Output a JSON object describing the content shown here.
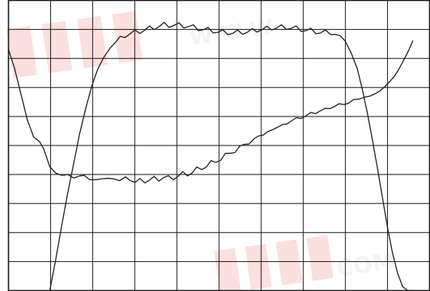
{
  "chart_data": {
    "type": "line",
    "grid": true,
    "xlim": [
      0,
      10
    ],
    "ylim": [
      0,
      10
    ],
    "xlabel": "",
    "ylabel": "",
    "series": [
      {
        "x": [
          0.0,
          0.14,
          0.31,
          0.45,
          0.6,
          0.74,
          0.84,
          0.98,
          1.12,
          1.27,
          1.41,
          1.55,
          1.69,
          1.8,
          1.93,
          2.07,
          2.22,
          2.36,
          2.5,
          2.64,
          2.78,
          2.89,
          3.01,
          3.12,
          3.24,
          3.35,
          3.46,
          3.57,
          3.69,
          3.8,
          3.91,
          4.02,
          4.14,
          4.25,
          4.36,
          4.47,
          4.59,
          4.7,
          4.81,
          4.92,
          5.04,
          5.15,
          5.26,
          5.38,
          5.49,
          5.6,
          5.71,
          5.83,
          5.94,
          6.05,
          6.16,
          6.28,
          6.39,
          6.5,
          6.61,
          6.73,
          6.84,
          6.95,
          7.07,
          7.18,
          7.29,
          7.4,
          7.52,
          7.63,
          7.74,
          7.85,
          7.97,
          8.08,
          8.19,
          8.33,
          8.46,
          8.58,
          8.7,
          8.82,
          8.93,
          9.04,
          9.15,
          9.25,
          9.34,
          9.43,
          9.51,
          9.6
        ],
        "y": [
          8.31,
          7.68,
          6.69,
          5.87,
          5.29,
          5.13,
          4.87,
          4.27,
          4.05,
          3.97,
          4.0,
          3.88,
          3.95,
          3.97,
          3.82,
          3.82,
          3.85,
          3.87,
          3.85,
          3.79,
          3.92,
          3.79,
          3.73,
          3.86,
          3.71,
          3.81,
          3.94,
          3.77,
          3.9,
          3.96,
          3.82,
          3.93,
          4.1,
          3.95,
          4.05,
          4.26,
          4.17,
          4.26,
          4.48,
          4.42,
          4.49,
          4.73,
          4.73,
          4.76,
          4.98,
          5.04,
          5.05,
          5.23,
          5.33,
          5.36,
          5.48,
          5.55,
          5.63,
          5.72,
          5.74,
          5.86,
          5.96,
          5.93,
          6.03,
          6.14,
          6.1,
          6.19,
          6.28,
          6.27,
          6.34,
          6.44,
          6.41,
          6.46,
          6.58,
          6.6,
          6.67,
          6.7,
          6.78,
          6.88,
          7.02,
          7.18,
          7.36,
          7.58,
          7.82,
          8.07,
          8.3,
          8.6
        ]
      },
      {
        "x": [
          0.98,
          1.12,
          1.27,
          1.41,
          1.55,
          1.69,
          1.84,
          1.98,
          2.12,
          2.26,
          2.41,
          2.55,
          2.65,
          2.77,
          2.88,
          3.0,
          3.12,
          3.23,
          3.35,
          3.46,
          3.58,
          3.7,
          3.81,
          3.93,
          4.05,
          4.16,
          4.28,
          4.39,
          4.51,
          4.63,
          4.74,
          4.86,
          4.97,
          5.09,
          5.21,
          5.32,
          5.44,
          5.56,
          5.67,
          5.79,
          5.9,
          6.02,
          6.14,
          6.25,
          6.37,
          6.48,
          6.6,
          6.72,
          6.83,
          6.95,
          7.07,
          7.18,
          7.3,
          7.41,
          7.53,
          7.65,
          7.76,
          7.88,
          8.0,
          8.14,
          8.28,
          8.4,
          8.52,
          8.64,
          8.76,
          8.88,
          9.0,
          9.12,
          9.24,
          9.36,
          9.48,
          9.6
        ],
        "y": [
          0.0,
          1.05,
          2.29,
          3.39,
          4.39,
          5.41,
          6.31,
          7.06,
          7.63,
          8.03,
          8.35,
          8.57,
          8.76,
          8.72,
          8.84,
          8.98,
          8.86,
          8.97,
          9.12,
          8.99,
          9.1,
          9.24,
          9.07,
          9.14,
          9.23,
          9.05,
          9.1,
          9.16,
          8.96,
          8.99,
          9.07,
          8.88,
          8.9,
          8.99,
          8.82,
          8.86,
          8.98,
          8.83,
          8.9,
          9.03,
          8.91,
          8.99,
          9.11,
          8.98,
          9.05,
          9.16,
          9.0,
          9.04,
          9.12,
          8.93,
          8.96,
          9.04,
          8.85,
          8.88,
          8.98,
          8.82,
          8.83,
          8.78,
          8.59,
          8.18,
          7.66,
          6.95,
          6.14,
          5.21,
          4.23,
          3.21,
          2.18,
          1.29,
          0.6,
          0.14,
          0.0,
          0.0
        ]
      }
    ]
  },
  "style": {
    "background": "#ffffff",
    "grid_color": "#1a1a1a",
    "line_color": "#222222",
    "frame_color": "#1a1a1a"
  }
}
